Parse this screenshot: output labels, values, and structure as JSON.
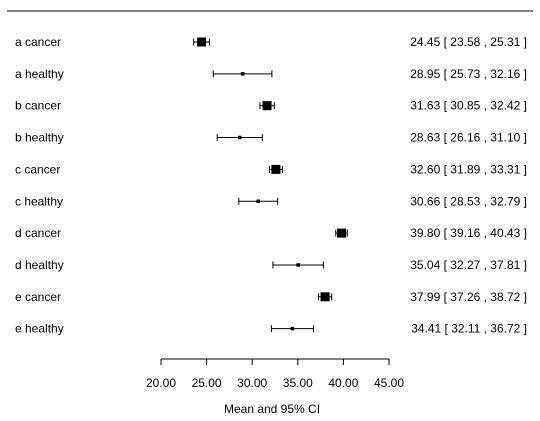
{
  "chart_data": {
    "type": "forest",
    "xlabel": "Mean and 95% CI",
    "xlim": [
      20,
      45
    ],
    "xticks": [
      "20.00",
      "25.00",
      "30.00",
      "35.00",
      "40.00",
      "45.00"
    ],
    "rows": [
      {
        "label": "a cancer",
        "mean": 24.45,
        "lower": 23.58,
        "upper": 25.31,
        "ci_text": "24.45 [ 23.58 , 25.31 ]",
        "box": "large"
      },
      {
        "label": "a healthy",
        "mean": 28.95,
        "lower": 25.73,
        "upper": 32.16,
        "ci_text": "28.95 [ 25.73 , 32.16 ]",
        "box": "small"
      },
      {
        "label": "b cancer",
        "mean": 31.63,
        "lower": 30.85,
        "upper": 32.42,
        "ci_text": "31.63 [ 30.85 , 32.42 ]",
        "box": "large"
      },
      {
        "label": "b healthy",
        "mean": 28.63,
        "lower": 26.16,
        "upper": 31.1,
        "ci_text": "28.63 [ 26.16 , 31.10 ]",
        "box": "small"
      },
      {
        "label": "c cancer",
        "mean": 32.6,
        "lower": 31.89,
        "upper": 33.31,
        "ci_text": "32.60 [ 31.89 , 33.31 ]",
        "box": "large"
      },
      {
        "label": "c healthy",
        "mean": 30.66,
        "lower": 28.53,
        "upper": 32.79,
        "ci_text": "30.66 [ 28.53 , 32.79 ]",
        "box": "small"
      },
      {
        "label": "d cancer",
        "mean": 39.8,
        "lower": 39.16,
        "upper": 40.43,
        "ci_text": "39.80 [ 39.16 , 40.43 ]",
        "box": "large"
      },
      {
        "label": "d healthy",
        "mean": 35.04,
        "lower": 32.27,
        "upper": 37.81,
        "ci_text": "35.04 [ 32.27 , 37.81 ]",
        "box": "small"
      },
      {
        "label": "e cancer",
        "mean": 37.99,
        "lower": 37.26,
        "upper": 38.72,
        "ci_text": "37.99 [ 37.26 , 38.72 ]",
        "box": "large"
      },
      {
        "label": "e healthy",
        "mean": 34.41,
        "lower": 32.11,
        "upper": 36.72,
        "ci_text": "34.41 [ 32.11 , 36.72 ]",
        "box": "small"
      }
    ]
  }
}
